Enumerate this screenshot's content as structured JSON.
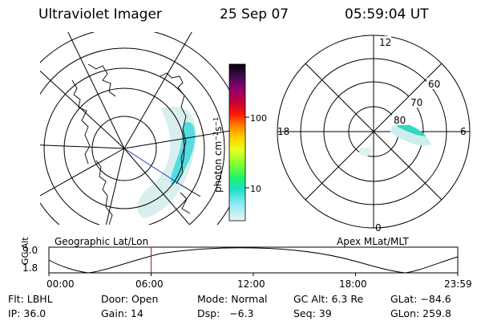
{
  "header": {
    "instrument": "Ultraviolet Imager",
    "date": "25 Sep 07",
    "time": "05:59:04 UT"
  },
  "colorbar": {
    "unit_label": "photon cm-2s-1",
    "ticks": [
      "100",
      "10"
    ],
    "colors": [
      "#000000",
      "#2b0a3a",
      "#5a0a6e",
      "#8a0060",
      "#b4004a",
      "#e0002a",
      "#ff3000",
      "#ff8a00",
      "#ffc000",
      "#ffff30",
      "#a0ff30",
      "#30ff60",
      "#20e8c8",
      "#60e0f0",
      "#a8eef0",
      "#dff8f8"
    ]
  },
  "polar_plot": {
    "labels": {
      "top": "12",
      "bottom": "0",
      "left": "18",
      "right": "6"
    },
    "lat_labels": [
      "60",
      "70",
      "80"
    ],
    "caption": "Apex MLat/MLT"
  },
  "geo_plot": {
    "caption": "Geographic Lat/Lon"
  },
  "altitude_plot": {
    "ylabel": "GC Alt",
    "yticks": [
      "9.0",
      "1.8"
    ],
    "xticks": [
      "00:00",
      "06:00",
      "12:00",
      "18:00",
      "23:59"
    ],
    "current_time_fraction": 0.25
  },
  "info": {
    "flt": "Flt: LBHL",
    "door": "Door: Open",
    "mode": "Mode: Normal",
    "gc_alt": "GC Alt: 6.3 Re",
    "glat": "GLat: −84.6",
    "ip": "IP: 36.0",
    "gain": "Gain: 14",
    "dsp": "Dsp:   −6.3",
    "seq": "Seq: 39",
    "glon": "GLon: 259.8"
  }
}
